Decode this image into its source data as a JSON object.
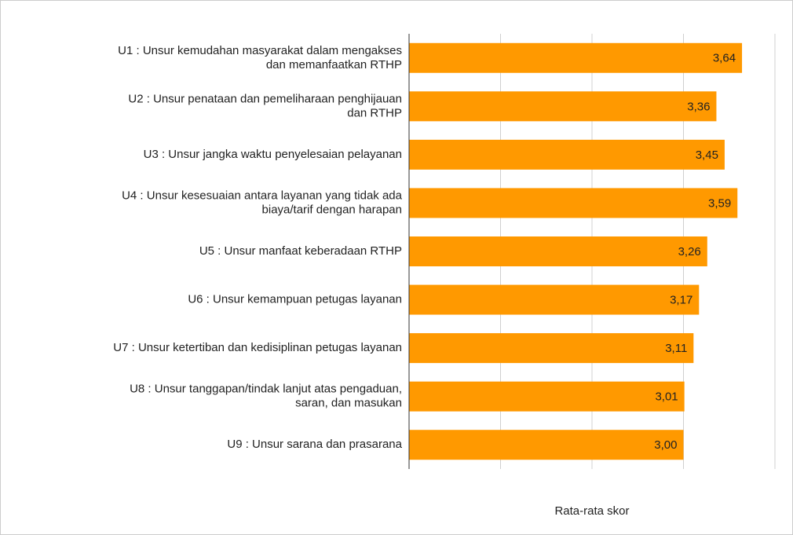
{
  "chart_data": {
    "type": "bar",
    "orientation": "horizontal",
    "categories": [
      "U1 : Unsur kemudahan masyarakat dalam mengakses\ndan memanfaatkan RTHP",
      "U2 : Unsur penataan dan pemeliharaan  penghijauan\ndan RTHP",
      "U3 : Unsur jangka waktu penyelesaian pelayanan",
      "U4 : Unsur kesesuaian antara layanan yang tidak ada\nbiaya/tarif dengan harapan",
      "U5 : Unsur manfaat keberadaan RTHP",
      "U6 : Unsur kemampuan petugas layanan",
      "U7 : Unsur ketertiban dan kedisiplinan petugas layanan",
      "U8 : Unsur tanggapan/tindak lanjut atas pengaduan,\nsaran, dan masukan",
      "U9 : Unsur sarana dan prasarana"
    ],
    "values": [
      3.64,
      3.36,
      3.45,
      3.59,
      3.26,
      3.17,
      3.11,
      3.01,
      3.0
    ],
    "value_labels": [
      "3,64",
      "3,36",
      "3,45",
      "3,59",
      "3,26",
      "3,17",
      "3,11",
      "3,01",
      "3,00"
    ],
    "color": "#ff9900",
    "xlabel": "Rata-rata skor",
    "xlim": [
      0,
      4
    ],
    "xticks": [
      0,
      1,
      2,
      3,
      4
    ],
    "grid": true
  }
}
